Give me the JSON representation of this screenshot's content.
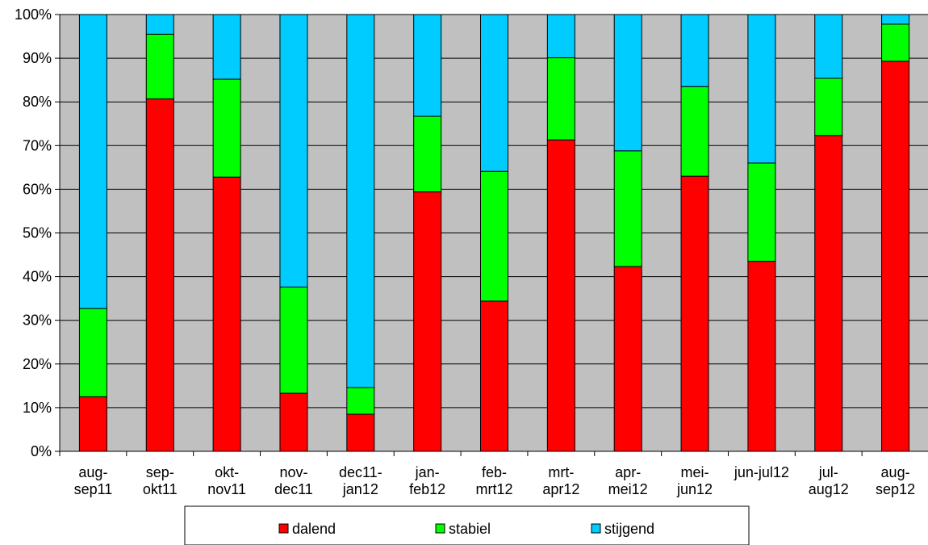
{
  "chart_data": {
    "type": "bar",
    "stacked": true,
    "percent": true,
    "categories": [
      [
        "aug-",
        "sep11"
      ],
      [
        "sep-",
        "okt11"
      ],
      [
        "okt-",
        "nov11"
      ],
      [
        "nov-",
        "dec11"
      ],
      [
        "dec11-",
        "jan12"
      ],
      [
        "jan-",
        "feb12"
      ],
      [
        "feb-",
        "mrt12"
      ],
      [
        "mrt-",
        "apr12"
      ],
      [
        "apr-",
        "mei12"
      ],
      [
        "mei-",
        "jun12"
      ],
      [
        "jun-jul12"
      ],
      [
        "jul-",
        "aug12"
      ],
      [
        "aug-",
        "sep12"
      ]
    ],
    "series": [
      {
        "name": "dalend",
        "color": "#ff0000",
        "values": [
          12.5,
          80.7,
          62.8,
          13.3,
          8.5,
          59.4,
          34.4,
          71.3,
          42.3,
          63.0,
          43.5,
          72.3,
          89.3
        ]
      },
      {
        "name": "stabiel",
        "color": "#00ff00",
        "values": [
          20.2,
          14.8,
          22.4,
          24.3,
          6.1,
          17.3,
          29.7,
          18.8,
          26.5,
          20.5,
          22.5,
          13.1,
          8.5
        ]
      },
      {
        "name": "stijgend",
        "color": "#00ccff",
        "values": [
          67.3,
          4.5,
          14.8,
          62.4,
          85.4,
          23.3,
          35.9,
          9.9,
          31.2,
          16.5,
          34.0,
          14.6,
          2.2
        ]
      }
    ],
    "yticks": [
      "0%",
      "10%",
      "20%",
      "30%",
      "40%",
      "50%",
      "60%",
      "70%",
      "80%",
      "90%",
      "100%"
    ],
    "ylim": [
      0,
      100
    ],
    "grid": true,
    "plot_bg": "#c0c0c0",
    "legend_position": "bottom"
  }
}
